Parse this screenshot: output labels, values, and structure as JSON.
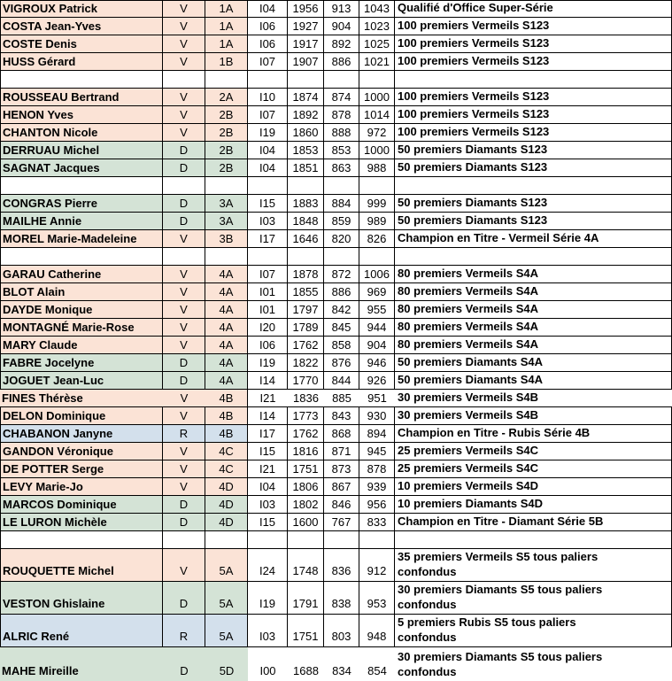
{
  "colors": {
    "vermeil_row": "#fbe3d6",
    "diamant_row": "#d4e3d6",
    "rubis_row": "#d3e0ec",
    "border": "#000000"
  },
  "category_color_map": {
    "V": "vermeil_row",
    "D": "diamant_row",
    "R": "rubis_row"
  },
  "rows": [
    {
      "name": "VIGROUX Patrick",
      "cat": "V",
      "serie": "1A",
      "code": "I04",
      "v1": "1956",
      "v2": "913",
      "v3": "1043",
      "desc": "Qualifié d'Office Super-Série"
    },
    {
      "name": "COSTA Jean-Yves",
      "cat": "V",
      "serie": "1A",
      "code": "I06",
      "v1": "1927",
      "v2": "904",
      "v3": "1023",
      "desc": "100 premiers Vermeils S123"
    },
    {
      "name": "COSTE Denis",
      "cat": "V",
      "serie": "1A",
      "code": "I06",
      "v1": "1917",
      "v2": "892",
      "v3": "1025",
      "desc": "100 premiers Vermeils S123"
    },
    {
      "name": "HUSS Gérard",
      "cat": "V",
      "serie": "1B",
      "code": "I07",
      "v1": "1907",
      "v2": "886",
      "v3": "1021",
      "desc": "100 premiers Vermeils S123"
    },
    {
      "empty": true
    },
    {
      "name": "ROUSSEAU Bertrand",
      "cat": "V",
      "serie": "2A",
      "code": "I10",
      "v1": "1874",
      "v2": "874",
      "v3": "1000",
      "desc": "100 premiers Vermeils S123"
    },
    {
      "name": "HENON Yves",
      "cat": "V",
      "serie": "2B",
      "code": "I07",
      "v1": "1892",
      "v2": "878",
      "v3": "1014",
      "desc": "100 premiers Vermeils S123"
    },
    {
      "name": "CHANTON Nicole",
      "cat": "V",
      "serie": "2B",
      "code": "I19",
      "v1": "1860",
      "v2": "888",
      "v3": "972",
      "desc": "100 premiers Vermeils S123"
    },
    {
      "name": "DERRUAU Michel",
      "cat": "D",
      "serie": "2B",
      "code": "I04",
      "v1": "1853",
      "v2": "853",
      "v3": "1000",
      "desc": "50 premiers Diamants S123"
    },
    {
      "name": "SAGNAT Jacques",
      "cat": "D",
      "serie": "2B",
      "code": "I04",
      "v1": "1851",
      "v2": "863",
      "v3": "988",
      "desc": "50 premiers Diamants S123"
    },
    {
      "empty": true
    },
    {
      "name": "CONGRAS Pierre",
      "cat": "D",
      "serie": "3A",
      "code": "I15",
      "v1": "1883",
      "v2": "884",
      "v3": "999",
      "desc": "50 premiers Diamants S123"
    },
    {
      "name": "MAILHE Annie",
      "cat": "D",
      "serie": "3A",
      "code": "I03",
      "v1": "1848",
      "v2": "859",
      "v3": "989",
      "desc": "50 premiers Diamants S123"
    },
    {
      "name": "MOREL Marie-Madeleine",
      "cat": "V",
      "serie": "3B",
      "code": "I17",
      "v1": "1646",
      "v2": "820",
      "v3": "826",
      "desc": "Champion en Titre - Vermeil Série 4A"
    },
    {
      "empty": true
    },
    {
      "name": "GARAU Catherine",
      "cat": "V",
      "serie": "4A",
      "code": "I07",
      "v1": "1878",
      "v2": "872",
      "v3": "1006",
      "desc": "80 premiers Vermeils S4A"
    },
    {
      "name": "BLOT Alain",
      "cat": "V",
      "serie": "4A",
      "code": "I01",
      "v1": "1855",
      "v2": "886",
      "v3": "969",
      "desc": "80 premiers Vermeils S4A"
    },
    {
      "name": "DAYDE Monique",
      "cat": "V",
      "serie": "4A",
      "code": "I01",
      "v1": "1797",
      "v2": "842",
      "v3": "955",
      "desc": "80 premiers Vermeils S4A"
    },
    {
      "name": "MONTAGNÉ Marie-Rose",
      "cat": "V",
      "serie": "4A",
      "code": "I20",
      "v1": "1789",
      "v2": "845",
      "v3": "944",
      "desc": "80 premiers Vermeils S4A"
    },
    {
      "name": "MARY Claude",
      "cat": "V",
      "serie": "4A",
      "code": "I06",
      "v1": "1762",
      "v2": "858",
      "v3": "904",
      "desc": "80 premiers Vermeils S4A"
    },
    {
      "name": "FABRE Jocelyne",
      "cat": "D",
      "serie": "4A",
      "code": "I19",
      "v1": "1822",
      "v2": "876",
      "v3": "946",
      "desc": "50 premiers Diamants S4A"
    },
    {
      "name": "JOGUET Jean-Luc",
      "cat": "D",
      "serie": "4A",
      "code": "I14",
      "v1": "1770",
      "v2": "844",
      "v3": "926",
      "desc": "50 premiers Diamants S4A"
    },
    {
      "name": "FINES Thérèse",
      "cat": "V",
      "serie": "4B",
      "code": "I21",
      "v1": "1836",
      "v2": "885",
      "v3": "951",
      "desc": "30 premiers Vermeils S4B",
      "no_inner_borders": true
    },
    {
      "name": "DELON Dominique",
      "cat": "V",
      "serie": "4B",
      "code": "I14",
      "v1": "1773",
      "v2": "843",
      "v3": "930",
      "desc": "30 premiers Vermeils S4B"
    },
    {
      "name": "CHABANON Janyne",
      "cat": "R",
      "serie": "4B",
      "code": "I17",
      "v1": "1762",
      "v2": "868",
      "v3": "894",
      "desc": "Champion en Titre - Rubis Série 4B"
    },
    {
      "name": "GANDON Véronique",
      "cat": "V",
      "serie": "4C",
      "code": "I15",
      "v1": "1816",
      "v2": "871",
      "v3": "945",
      "desc": "25 premiers Vermeils S4C"
    },
    {
      "name": "DE POTTER Serge",
      "cat": "V",
      "serie": "4C",
      "code": "I21",
      "v1": "1751",
      "v2": "873",
      "v3": "878",
      "desc": "25 premiers Vermeils S4C"
    },
    {
      "name": "LEVY Marie-Jo",
      "cat": "V",
      "serie": "4D",
      "code": "I04",
      "v1": "1806",
      "v2": "867",
      "v3": "939",
      "desc": "10 premiers Vermeils S4D"
    },
    {
      "name": "MARCOS Dominique",
      "cat": "D",
      "serie": "4D",
      "code": "I03",
      "v1": "1802",
      "v2": "846",
      "v3": "956",
      "desc": "10 premiers Diamants S4D"
    },
    {
      "name": "LE LURON Michèle",
      "cat": "D",
      "serie": "4D",
      "code": "I15",
      "v1": "1600",
      "v2": "767",
      "v3": "833",
      "desc": "Champion en Titre - Diamant Série 5B"
    },
    {
      "empty": true
    },
    {
      "name": "ROUQUETTE Michel",
      "cat": "V",
      "serie": "5A",
      "code": "I24",
      "v1": "1748",
      "v2": "836",
      "v3": "912",
      "desc": "35 premiers Vermeils S5 tous paliers\nconfondus",
      "tall": true
    },
    {
      "name": "VESTON Ghislaine",
      "cat": "D",
      "serie": "5A",
      "code": "I19",
      "v1": "1791",
      "v2": "838",
      "v3": "953",
      "desc": "30 premiers Diamants S5 tous paliers\nconfondus",
      "tall": true
    },
    {
      "name": "ALRIC René",
      "cat": "R",
      "serie": "5A",
      "code": "I03",
      "v1": "1751",
      "v2": "803",
      "v3": "948",
      "desc": "5 premiers Rubis S5 tous paliers\nconfondus",
      "tall": true
    },
    {
      "name": "MAHE Mireille",
      "cat": "D",
      "serie": "5D",
      "code": "I00",
      "v1": "1688",
      "v2": "834",
      "v3": "854",
      "desc": "30 premiers Diamants S5 tous paliers\nconfondus",
      "tall": true,
      "borderless": true
    }
  ]
}
